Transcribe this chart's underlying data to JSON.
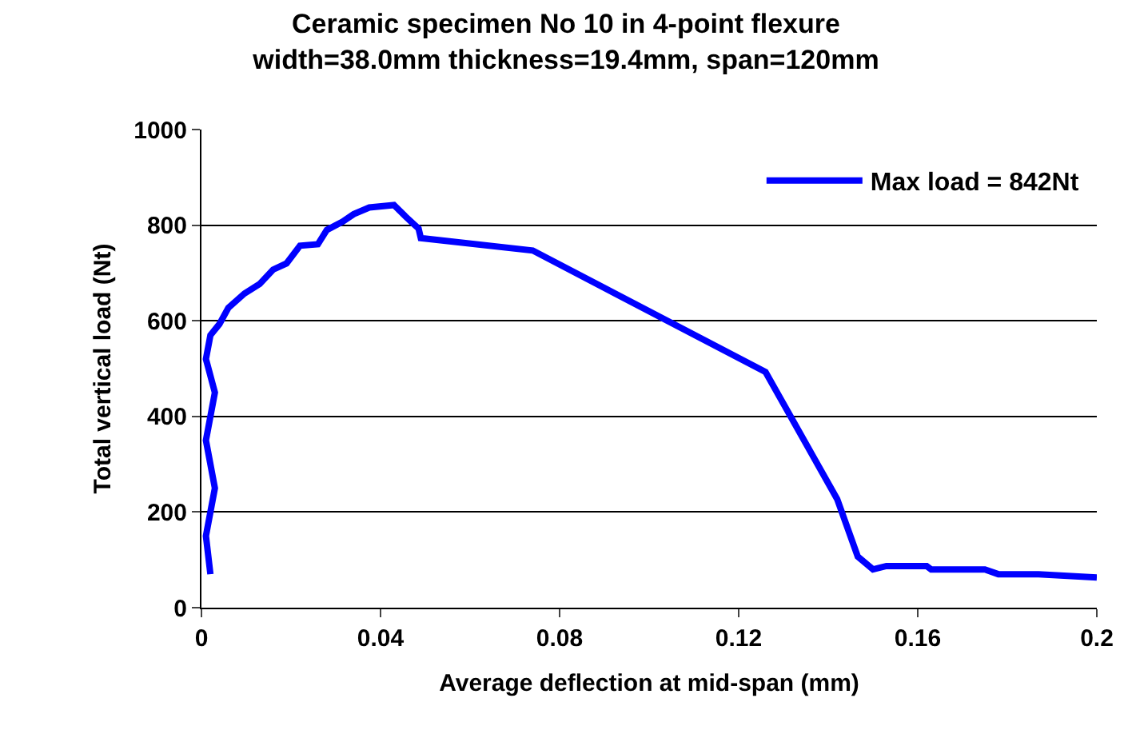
{
  "chart_data": {
    "type": "line",
    "title": "Ceramic specimen No 10 in 4-point flexure",
    "subtitle": "width=38.0mm thickness=19.4mm, span=120mm",
    "xlabel": "Average deflection at mid-span (mm)",
    "ylabel": "Total vertical load (Nt)",
    "xlim": [
      0,
      0.2
    ],
    "xticks": [
      0,
      0.04,
      0.08,
      0.12,
      0.16,
      0.2
    ],
    "ylim": [
      0,
      1000
    ],
    "yticks": [
      0,
      200,
      400,
      600,
      800,
      1000
    ],
    "grid": "y",
    "legend": "top right",
    "marker": "none",
    "line_style": "solid",
    "series": [
      {
        "name": "Max load = 842Nt",
        "color": "#0000ff",
        "x": [
          0.002,
          0.001,
          0.003,
          0.001,
          0.003,
          0.001,
          0.002,
          0.004,
          0.006,
          0.0096,
          0.013,
          0.016,
          0.019,
          0.022,
          0.026,
          0.028,
          0.0315,
          0.034,
          0.0375,
          0.043,
          0.0457,
          0.0485,
          0.049,
          0.074,
          0.126,
          0.142,
          0.1466,
          0.15,
          0.153,
          0.162,
          0.163,
          0.175,
          0.178,
          0.187,
          0.2
        ],
        "values": [
          70,
          150,
          250,
          350,
          450,
          520,
          570,
          593,
          627,
          657,
          677,
          707,
          720,
          757,
          760,
          790,
          807,
          823,
          837,
          842,
          817,
          793,
          773,
          747,
          493,
          227,
          107,
          80,
          87,
          87,
          80,
          80,
          70,
          70,
          63
        ]
      }
    ]
  }
}
